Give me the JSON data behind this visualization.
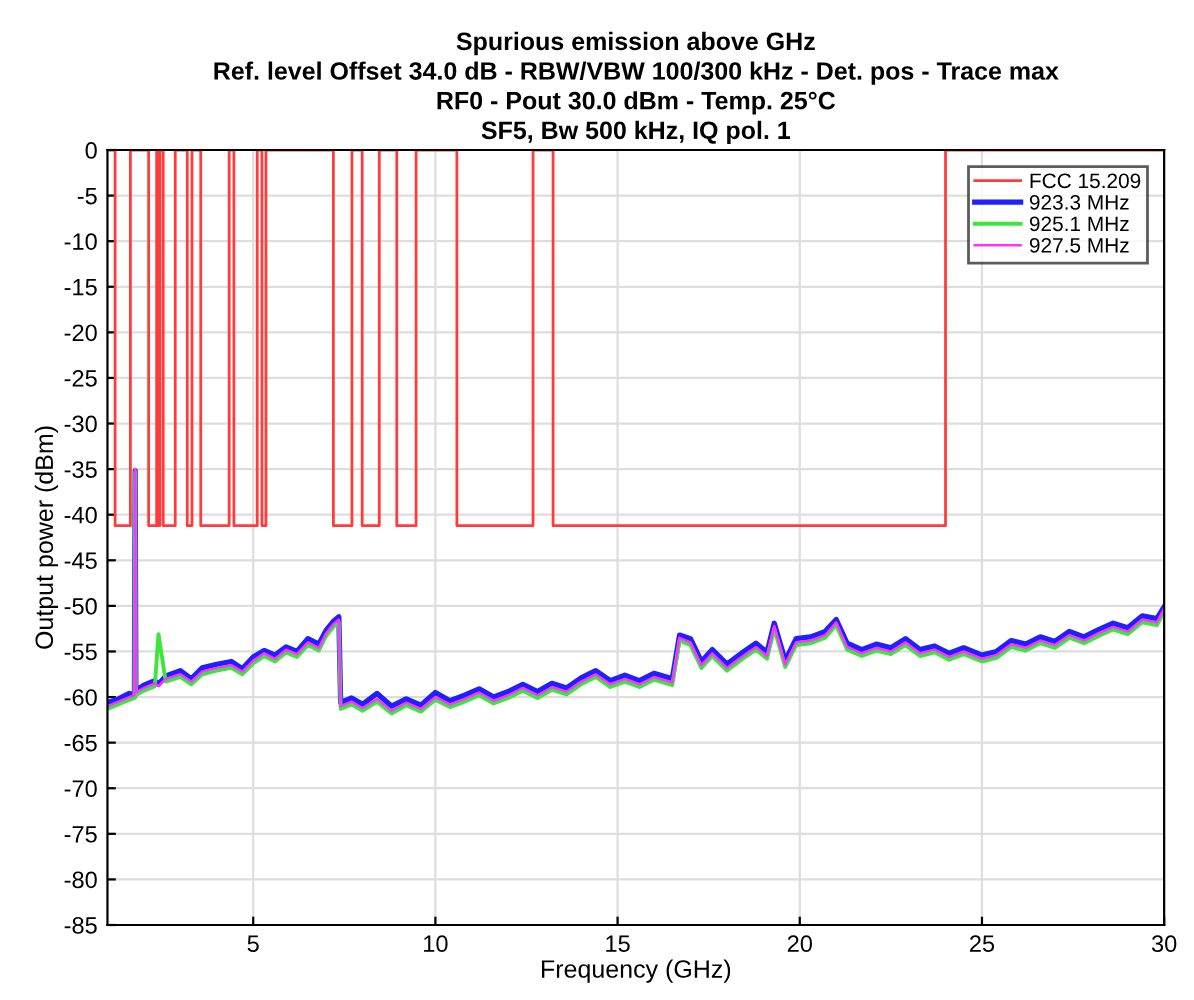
{
  "chart_data": {
    "type": "line",
    "title": "Spurious emission above GHz\nRef. level Offset 34.0 dB - RBW/VBW 100/300 kHz - Det. pos - Trace max\nRF0 - Pout 30.0 dBm - Temp. 25°C\nSF5, Bw 500 kHz, IQ pol. 1",
    "xlabel": "Frequency (GHz)",
    "ylabel": "Output power (dBm)",
    "x": [
      1.0,
      1.3,
      1.6,
      1.74,
      1.76,
      1.78,
      2.0,
      2.3,
      2.4,
      2.6,
      3.0,
      3.3,
      3.6,
      4.0,
      4.4,
      4.7,
      5.0,
      5.3,
      5.6,
      5.9,
      6.2,
      6.5,
      6.8,
      7.0,
      7.2,
      7.35,
      7.4,
      7.7,
      8.0,
      8.4,
      8.8,
      9.2,
      9.6,
      10.0,
      10.4,
      10.8,
      11.2,
      11.6,
      12.0,
      12.4,
      12.8,
      13.2,
      13.6,
      14.0,
      14.4,
      14.8,
      15.2,
      15.6,
      16.0,
      16.5,
      16.7,
      17.0,
      17.3,
      17.6,
      18.0,
      18.4,
      18.8,
      19.1,
      19.3,
      19.6,
      19.9,
      20.3,
      20.7,
      21.0,
      21.3,
      21.7,
      22.1,
      22.5,
      22.9,
      23.3,
      23.7,
      24.1,
      24.5,
      25.0,
      25.4,
      25.8,
      26.2,
      26.6,
      27.0,
      27.4,
      27.8,
      28.2,
      28.6,
      29.0,
      29.4,
      29.8,
      30.0
    ],
    "series": [
      {
        "name": "FCC 15.209",
        "type": "step",
        "color": "#ff3b3b",
        "x": [
          1,
          1.21,
          1.63,
          2.13,
          2.35,
          2.4,
          2.44,
          2.53,
          2.86,
          3.19,
          3.32,
          3.56,
          4.34,
          4.47,
          5.11,
          5.24,
          5.35,
          7.2,
          7.71,
          7.99,
          8.46,
          8.94,
          9.47,
          10.59,
          12.68,
          13.23,
          24.0,
          30
        ],
        "values": [
          0,
          -41.2,
          0,
          -41.2,
          0,
          -41.2,
          0,
          -41.2,
          0,
          -41.2,
          0,
          -41.2,
          0,
          -41.2,
          0,
          -41.2,
          0,
          -41.2,
          0,
          -41.2,
          0,
          -41.2,
          0,
          -41.2,
          0,
          -41.2,
          0,
          0
        ]
      },
      {
        "name": "923.3 MHz",
        "type": "line",
        "color": "#1f1fff",
        "values": [
          -60.6,
          -60.2,
          -59.6,
          -59.9,
          -35.2,
          -59.3,
          -58.7,
          -58.2,
          -58.6,
          -57.7,
          -57.1,
          -58.0,
          -56.8,
          -56.4,
          -56.1,
          -56.9,
          -55.6,
          -54.9,
          -55.4,
          -54.5,
          -55.0,
          -53.6,
          -54.2,
          -52.7,
          -51.7,
          -51.2,
          -60.6,
          -60.1,
          -60.8,
          -59.6,
          -61.0,
          -60.2,
          -60.9,
          -59.5,
          -60.4,
          -59.8,
          -59.1,
          -60.0,
          -59.4,
          -58.6,
          -59.4,
          -58.5,
          -59.0,
          -57.9,
          -57.1,
          -58.2,
          -57.6,
          -58.2,
          -57.4,
          -58.0,
          -53.2,
          -53.6,
          -56.1,
          -54.8,
          -56.4,
          -55.2,
          -54.1,
          -55.1,
          -51.9,
          -56.0,
          -53.6,
          -53.4,
          -52.8,
          -51.5,
          -54.1,
          -54.8,
          -54.2,
          -54.6,
          -53.6,
          -54.8,
          -54.4,
          -55.2,
          -54.6,
          -55.4,
          -55.0,
          -53.8,
          -54.2,
          -53.4,
          -53.9,
          -52.8,
          -53.4,
          -52.6,
          -51.9,
          -52.4,
          -51.1,
          -51.4,
          -50.1
        ]
      },
      {
        "name": "925.1 MHz",
        "type": "line",
        "color": "#3ce63c",
        "values": [
          -61.3,
          -60.8,
          -60.3,
          -60.1,
          -35.3,
          -59.8,
          -59.3,
          -58.8,
          -53.1,
          -58.3,
          -57.8,
          -58.6,
          -57.5,
          -57.1,
          -56.8,
          -57.5,
          -56.3,
          -55.5,
          -56.1,
          -55.1,
          -55.6,
          -54.3,
          -54.9,
          -53.3,
          -52.3,
          -51.8,
          -61.3,
          -60.8,
          -61.5,
          -60.5,
          -61.8,
          -60.9,
          -61.6,
          -60.3,
          -61.1,
          -60.5,
          -59.8,
          -60.7,
          -60.1,
          -59.3,
          -60.1,
          -59.2,
          -59.7,
          -58.6,
          -57.8,
          -58.9,
          -58.3,
          -58.9,
          -58.1,
          -58.7,
          -53.8,
          -54.3,
          -56.8,
          -55.5,
          -57.1,
          -55.9,
          -54.8,
          -55.8,
          -52.5,
          -56.7,
          -54.3,
          -54.1,
          -53.5,
          -52.1,
          -54.8,
          -55.5,
          -54.9,
          -55.3,
          -54.3,
          -55.5,
          -55.1,
          -55.9,
          -55.3,
          -56.1,
          -55.7,
          -54.5,
          -54.9,
          -54.1,
          -54.6,
          -53.5,
          -54.1,
          -53.3,
          -52.6,
          -53.1,
          -51.8,
          -52.1,
          -50.6
        ]
      },
      {
        "name": "927.5 MHz",
        "type": "line",
        "color": "#ff33ff",
        "values": [
          -61.0,
          -60.5,
          -60.0,
          -59.8,
          -35.0,
          -59.5,
          -59.0,
          -58.5,
          -58.8,
          -58.0,
          -57.5,
          -58.3,
          -57.2,
          -56.8,
          -56.5,
          -57.2,
          -56.0,
          -55.2,
          -55.8,
          -54.8,
          -55.3,
          -54.0,
          -54.6,
          -53.0,
          -52.0,
          -51.5,
          -61.0,
          -60.5,
          -61.2,
          -60.2,
          -61.5,
          -60.6,
          -61.3,
          -60.0,
          -60.8,
          -60.2,
          -59.5,
          -60.4,
          -59.8,
          -59.0,
          -59.8,
          -58.9,
          -59.4,
          -58.3,
          -57.5,
          -58.6,
          -58.0,
          -58.6,
          -57.8,
          -58.4,
          -53.5,
          -54.0,
          -56.5,
          -55.2,
          -56.8,
          -55.6,
          -54.5,
          -55.5,
          -52.2,
          -56.4,
          -54.0,
          -53.8,
          -53.2,
          -51.8,
          -54.5,
          -55.2,
          -54.6,
          -55.0,
          -54.0,
          -55.2,
          -54.8,
          -55.6,
          -55.0,
          -55.8,
          -55.4,
          -54.2,
          -54.6,
          -53.8,
          -54.3,
          -53.2,
          -53.8,
          -53.0,
          -52.3,
          -52.8,
          -51.5,
          -51.8,
          -50.3
        ]
      }
    ],
    "xlim": [
      1,
      30
    ],
    "xticks": [
      5,
      10,
      15,
      20,
      25,
      30
    ],
    "ylim": [
      -85,
      0
    ],
    "yticks": [
      0,
      -5,
      -10,
      -15,
      -20,
      -25,
      -30,
      -35,
      -40,
      -45,
      -50,
      -55,
      -60,
      -65,
      -70,
      -75,
      -80,
      -85
    ],
    "grid": true,
    "legend": "top right"
  }
}
